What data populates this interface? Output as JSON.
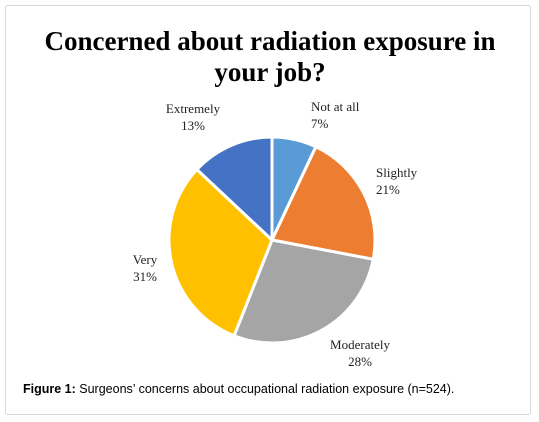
{
  "chart_data": {
    "type": "pie",
    "title_lines": [
      "Concerned about radiation exposure in",
      "your job?"
    ],
    "slices": [
      {
        "label": "Not at all",
        "value": 7,
        "display": "7%",
        "color": "#5b9bd5"
      },
      {
        "label": "Slightly",
        "value": 21,
        "display": "21%",
        "color": "#ed7d31"
      },
      {
        "label": "Moderately",
        "value": 28,
        "display": "28%",
        "color": "#a5a5a5"
      },
      {
        "label": "Very",
        "value": 31,
        "display": "31%",
        "color": "#ffc000"
      },
      {
        "label": "Extremely",
        "value": 13,
        "display": "13%",
        "color": "#4472c4"
      }
    ],
    "start_angle_deg": 0,
    "direction": "clockwise"
  },
  "caption": {
    "label": "Figure 1:",
    "text": " Surgeons’ concerns about occupational radiation exposure (n=524)."
  }
}
